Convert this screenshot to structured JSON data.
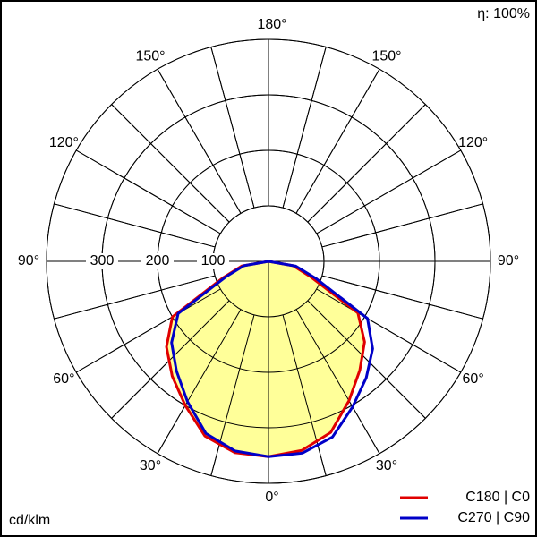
{
  "chart_data": {
    "type": "polar",
    "efficiency_label": "η: 100%",
    "unit_label": "cd/klm",
    "x": [
      0,
      10,
      20,
      30,
      40,
      50,
      60,
      70,
      80,
      90
    ],
    "series": [
      {
        "name": "C180 | C0",
        "color": "#e00000",
        "fill": "#ffff99",
        "values_left": [
          352,
          350,
          335,
          300,
          270,
          240,
          200,
          88,
          49,
          0
        ],
        "values_right": [
          352,
          346,
          328,
          290,
          256,
          226,
          186,
          80,
          45,
          0
        ]
      },
      {
        "name": "C270 | C90",
        "color": "#0000c8",
        "values_left": [
          352,
          347,
          330,
          292,
          258,
          228,
          188,
          82,
          45,
          0
        ],
        "values_right": [
          352,
          351,
          337,
          303,
          274,
          245,
          206,
          92,
          50,
          0
        ]
      }
    ],
    "rlim": [
      0,
      400
    ],
    "rticks": [
      100,
      200,
      300
    ],
    "angle_ticks": [
      {
        "value": 0,
        "label": "0°"
      },
      {
        "value": 30,
        "label": "30°"
      },
      {
        "value": 60,
        "label": "60°"
      },
      {
        "value": 90,
        "label": "90°"
      },
      {
        "value": 120,
        "label": "120°"
      },
      {
        "value": 150,
        "label": "150°"
      },
      {
        "value": 180,
        "label": "180°"
      }
    ]
  }
}
